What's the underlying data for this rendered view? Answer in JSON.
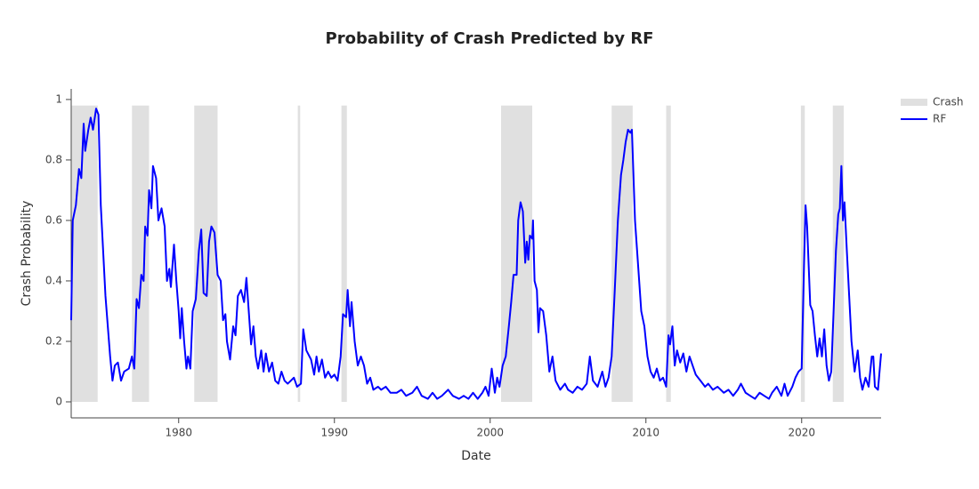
{
  "chart_data": {
    "type": "line",
    "title": "Probability of Crash Predicted by RF",
    "x_label": "Date",
    "y_label": "Crash Probability",
    "xlim": [
      1973.1,
      2025.1
    ],
    "xticks": [
      1980,
      1990,
      2000,
      2010,
      2020
    ],
    "ylim": [
      -0.053,
      1.035
    ],
    "yticks": [
      0,
      0.2,
      0.4,
      0.6,
      0.8,
      1
    ],
    "legend": "top-right",
    "series": [
      {
        "name": "Crash",
        "color": "#e0e0e0",
        "top": 0.98,
        "periods": [
          [
            1973.14,
            1974.8
          ],
          [
            1977.0,
            1978.1
          ],
          [
            1981.0,
            1982.5
          ],
          [
            1987.65,
            1987.8
          ],
          [
            1990.45,
            1990.8
          ],
          [
            2000.7,
            2002.7
          ],
          [
            2007.8,
            2009.15
          ],
          [
            2011.3,
            2011.6
          ],
          [
            2019.95,
            2020.2
          ],
          [
            2022.0,
            2022.7
          ]
        ]
      },
      {
        "name": "RF",
        "color": "#0000ff",
        "x": [
          1973.1,
          1973.2,
          1973.4,
          1973.6,
          1973.75,
          1973.9,
          1974.0,
          1974.2,
          1974.35,
          1974.5,
          1974.7,
          1974.85,
          1975.0,
          1975.3,
          1975.6,
          1975.75,
          1975.9,
          1976.1,
          1976.3,
          1976.5,
          1976.8,
          1977.0,
          1977.15,
          1977.3,
          1977.45,
          1977.6,
          1977.75,
          1977.85,
          1978.0,
          1978.1,
          1978.25,
          1978.35,
          1978.55,
          1978.7,
          1978.9,
          1979.1,
          1979.25,
          1979.4,
          1979.5,
          1979.7,
          1979.85,
          1980.0,
          1980.1,
          1980.2,
          1980.35,
          1980.5,
          1980.6,
          1980.75,
          1980.9,
          1981.1,
          1981.3,
          1981.45,
          1981.6,
          1981.8,
          1981.95,
          1982.1,
          1982.3,
          1982.5,
          1982.7,
          1982.85,
          1983.0,
          1983.1,
          1983.3,
          1983.5,
          1983.65,
          1983.8,
          1984.0,
          1984.2,
          1984.35,
          1984.5,
          1984.65,
          1984.8,
          1984.95,
          1985.1,
          1985.3,
          1985.45,
          1985.6,
          1985.8,
          1986.0,
          1986.2,
          1986.4,
          1986.6,
          1986.8,
          1987.0,
          1987.2,
          1987.4,
          1987.6,
          1987.85,
          1988.0,
          1988.2,
          1988.5,
          1988.7,
          1988.85,
          1989.0,
          1989.2,
          1989.4,
          1989.6,
          1989.8,
          1990.0,
          1990.2,
          1990.4,
          1990.55,
          1990.75,
          1990.85,
          1991.0,
          1991.1,
          1991.3,
          1991.5,
          1991.7,
          1991.9,
          1992.1,
          1992.3,
          1992.5,
          1992.8,
          1993.0,
          1993.3,
          1993.6,
          1994.0,
          1994.3,
          1994.6,
          1995.0,
          1995.3,
          1995.6,
          1996.0,
          1996.3,
          1996.6,
          1996.9,
          1997.3,
          1997.6,
          1998.0,
          1998.3,
          1998.6,
          1998.9,
          1999.2,
          1999.5,
          1999.7,
          1999.9,
          2000.1,
          2000.3,
          2000.45,
          2000.6,
          2000.8,
          2001.0,
          2001.2,
          2001.35,
          2001.5,
          2001.7,
          2001.8,
          2001.95,
          2002.1,
          2002.25,
          2002.35,
          2002.45,
          2002.55,
          2002.7,
          2002.75,
          2002.85,
          2003.0,
          2003.1,
          2003.2,
          2003.4,
          2003.6,
          2003.8,
          2004.0,
          2004.2,
          2004.5,
          2004.8,
          2005.0,
          2005.3,
          2005.6,
          2005.9,
          2006.2,
          2006.4,
          2006.6,
          2006.9,
          2007.2,
          2007.4,
          2007.6,
          2007.8,
          2008.0,
          2008.2,
          2008.4,
          2008.55,
          2008.7,
          2008.85,
          2009.0,
          2009.1,
          2009.3,
          2009.5,
          2009.7,
          2009.9,
          2010.1,
          2010.3,
          2010.5,
          2010.7,
          2010.9,
          2011.1,
          2011.3,
          2011.45,
          2011.55,
          2011.7,
          2011.85,
          2012.0,
          2012.2,
          2012.4,
          2012.6,
          2012.8,
          2013.0,
          2013.2,
          2013.5,
          2013.8,
          2014.0,
          2014.3,
          2014.6,
          2015.0,
          2015.3,
          2015.6,
          2015.9,
          2016.1,
          2016.4,
          2016.7,
          2017.0,
          2017.3,
          2017.6,
          2017.9,
          2018.1,
          2018.4,
          2018.7,
          2018.9,
          2019.1,
          2019.4,
          2019.6,
          2019.8,
          2020.0,
          2020.15,
          2020.25,
          2020.35,
          2020.45,
          2020.55,
          2020.7,
          2020.85,
          2021.0,
          2021.15,
          2021.3,
          2021.45,
          2021.6,
          2021.75,
          2021.9,
          2022.05,
          2022.2,
          2022.35,
          2022.45,
          2022.55,
          2022.65,
          2022.75,
          2022.9,
          2023.05,
          2023.2,
          2023.4,
          2023.6,
          2023.75,
          2023.9,
          2024.1,
          2024.3,
          2024.5,
          2024.6,
          2024.7,
          2024.9,
          2025.1
        ],
        "values": [
          0.27,
          0.6,
          0.65,
          0.77,
          0.74,
          0.92,
          0.83,
          0.9,
          0.94,
          0.9,
          0.97,
          0.95,
          0.65,
          0.35,
          0.15,
          0.07,
          0.12,
          0.13,
          0.07,
          0.1,
          0.11,
          0.15,
          0.11,
          0.34,
          0.31,
          0.42,
          0.4,
          0.58,
          0.55,
          0.7,
          0.64,
          0.78,
          0.74,
          0.6,
          0.64,
          0.58,
          0.4,
          0.44,
          0.38,
          0.52,
          0.4,
          0.3,
          0.21,
          0.31,
          0.2,
          0.11,
          0.15,
          0.11,
          0.3,
          0.34,
          0.5,
          0.57,
          0.36,
          0.35,
          0.53,
          0.58,
          0.56,
          0.42,
          0.4,
          0.27,
          0.29,
          0.2,
          0.14,
          0.25,
          0.22,
          0.35,
          0.37,
          0.33,
          0.41,
          0.3,
          0.19,
          0.25,
          0.15,
          0.11,
          0.17,
          0.1,
          0.16,
          0.1,
          0.13,
          0.07,
          0.06,
          0.1,
          0.07,
          0.06,
          0.07,
          0.08,
          0.05,
          0.06,
          0.24,
          0.17,
          0.14,
          0.09,
          0.15,
          0.1,
          0.14,
          0.08,
          0.1,
          0.08,
          0.09,
          0.07,
          0.15,
          0.29,
          0.28,
          0.37,
          0.25,
          0.33,
          0.2,
          0.12,
          0.15,
          0.12,
          0.06,
          0.08,
          0.04,
          0.05,
          0.04,
          0.05,
          0.03,
          0.03,
          0.04,
          0.02,
          0.03,
          0.05,
          0.02,
          0.01,
          0.03,
          0.01,
          0.02,
          0.04,
          0.02,
          0.01,
          0.02,
          0.01,
          0.03,
          0.01,
          0.03,
          0.05,
          0.02,
          0.11,
          0.03,
          0.08,
          0.05,
          0.12,
          0.15,
          0.25,
          0.33,
          0.42,
          0.42,
          0.6,
          0.66,
          0.63,
          0.46,
          0.53,
          0.47,
          0.55,
          0.54,
          0.6,
          0.4,
          0.37,
          0.23,
          0.31,
          0.3,
          0.22,
          0.1,
          0.15,
          0.07,
          0.04,
          0.06,
          0.04,
          0.03,
          0.05,
          0.04,
          0.06,
          0.15,
          0.07,
          0.05,
          0.1,
          0.05,
          0.08,
          0.15,
          0.37,
          0.6,
          0.75,
          0.8,
          0.86,
          0.9,
          0.89,
          0.9,
          0.6,
          0.45,
          0.3,
          0.25,
          0.15,
          0.1,
          0.08,
          0.11,
          0.07,
          0.08,
          0.05,
          0.22,
          0.19,
          0.25,
          0.12,
          0.17,
          0.13,
          0.16,
          0.1,
          0.15,
          0.12,
          0.09,
          0.07,
          0.05,
          0.06,
          0.04,
          0.05,
          0.03,
          0.04,
          0.02,
          0.04,
          0.06,
          0.03,
          0.02,
          0.01,
          0.03,
          0.02,
          0.01,
          0.03,
          0.05,
          0.02,
          0.06,
          0.02,
          0.05,
          0.08,
          0.1,
          0.11,
          0.45,
          0.65,
          0.58,
          0.45,
          0.32,
          0.3,
          0.22,
          0.15,
          0.21,
          0.15,
          0.24,
          0.12,
          0.07,
          0.1,
          0.3,
          0.5,
          0.62,
          0.64,
          0.78,
          0.6,
          0.66,
          0.5,
          0.35,
          0.2,
          0.1,
          0.17,
          0.08,
          0.04,
          0.08,
          0.05,
          0.15,
          0.15,
          0.05,
          0.04,
          0.16
        ]
      }
    ]
  }
}
